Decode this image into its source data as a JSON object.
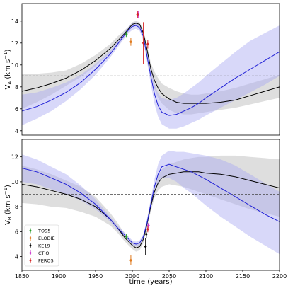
{
  "chart_data": [
    {
      "type": "line",
      "ylabel": "V",
      "ylabel_sub": "A",
      "ylabel_unit": " (km s",
      "ylabel_unit_sup": "−1",
      "ylabel_unit_close": ")",
      "xlim": [
        1850,
        2200
      ],
      "ylim": [
        3.6,
        15.6
      ],
      "yticks": [
        "4",
        "6",
        "8",
        "10",
        "12",
        "14"
      ],
      "ytick_values": [
        4,
        6,
        8,
        10,
        12,
        14
      ],
      "reference_line": 9.0,
      "series": [
        {
          "color": "#000000",
          "x": [
            1850,
            1870,
            1890,
            1910,
            1930,
            1950,
            1970,
            1980,
            1990,
            1995,
            2000,
            2005,
            2010,
            2015,
            2020,
            2025,
            2030,
            2035,
            2040,
            2050,
            2060,
            2070,
            2080,
            2090,
            2100,
            2120,
            2140,
            2160,
            2180,
            2200
          ],
          "values": [
            7.6,
            7.9,
            8.3,
            8.8,
            9.5,
            10.4,
            11.5,
            12.2,
            12.9,
            13.3,
            13.7,
            13.8,
            13.7,
            12.9,
            11.4,
            9.7,
            8.6,
            7.9,
            7.4,
            6.9,
            6.6,
            6.5,
            6.5,
            6.5,
            6.5,
            6.6,
            6.8,
            7.2,
            7.6,
            8.0
          ],
          "band_lower": [
            6.0,
            6.6,
            7.3,
            8.1,
            8.9,
            9.9,
            11.1,
            11.8,
            12.6,
            13.1,
            13.5,
            13.6,
            13.5,
            12.6,
            11.0,
            9.2,
            7.8,
            7.0,
            6.5,
            5.9,
            5.6,
            5.5,
            5.5,
            5.6,
            5.7,
            5.9,
            6.1,
            6.4,
            6.7,
            7.0
          ],
          "band_upper": [
            9.2,
            9.2,
            9.3,
            9.5,
            10.1,
            10.9,
            11.9,
            12.6,
            13.2,
            13.5,
            13.9,
            14.0,
            13.9,
            13.2,
            11.8,
            10.2,
            9.4,
            8.8,
            8.3,
            7.9,
            7.6,
            7.4,
            7.3,
            7.3,
            7.4,
            7.6,
            7.9,
            8.3,
            8.7,
            9.1
          ]
        },
        {
          "color": "#1f1fd6",
          "x": [
            1850,
            1870,
            1890,
            1910,
            1930,
            1950,
            1970,
            1980,
            1990,
            1995,
            2000,
            2005,
            2010,
            2015,
            2020,
            2025,
            2030,
            2035,
            2040,
            2050,
            2060,
            2070,
            2080,
            2090,
            2100,
            2120,
            2140,
            2160,
            2180,
            2200
          ],
          "values": [
            5.8,
            6.2,
            6.8,
            7.5,
            8.4,
            9.6,
            11.0,
            11.9,
            12.8,
            13.2,
            13.5,
            13.6,
            13.4,
            12.6,
            10.8,
            9.0,
            7.4,
            6.3,
            5.7,
            5.4,
            5.5,
            5.8,
            6.1,
            6.5,
            7.0,
            7.9,
            8.8,
            9.6,
            10.4,
            11.2
          ],
          "band_lower": [
            4.5,
            5.1,
            5.8,
            6.7,
            7.8,
            9.1,
            10.7,
            11.6,
            12.5,
            12.9,
            13.2,
            13.3,
            13.1,
            12.2,
            10.3,
            8.3,
            6.5,
            5.3,
            4.6,
            4.2,
            4.2,
            4.4,
            4.7,
            5.0,
            5.4,
            6.1,
            6.8,
            7.5,
            8.2,
            9.0
          ],
          "band_upper": [
            7.3,
            7.5,
            7.9,
            8.4,
            9.1,
            10.1,
            11.3,
            12.2,
            13.1,
            13.5,
            13.8,
            13.9,
            13.7,
            13.0,
            11.4,
            9.8,
            8.3,
            7.4,
            7.0,
            6.8,
            7.0,
            7.4,
            7.9,
            8.4,
            9.0,
            10.1,
            11.2,
            12.2,
            12.9,
            13.6
          ]
        }
      ],
      "observations": [
        {
          "instrument": "TO95",
          "color": "#2a9d2a",
          "x": 1992,
          "y": 12.8,
          "err": 0.25
        },
        {
          "instrument": "ELODIE",
          "color": "#e07b1f",
          "x": 1998,
          "y": 12.1,
          "err": 0.35
        },
        {
          "instrument": "CTIO",
          "color": "#cc33cc",
          "x": 2008,
          "y": 14.6,
          "err": 0.3
        },
        {
          "instrument": "FEROS",
          "color": "#d62728",
          "x": 2007,
          "y": 14.6,
          "err": 0.35
        },
        {
          "instrument": "FEROS",
          "color": "#d62728",
          "x": 2015,
          "y": 12.0,
          "err": 1.9
        },
        {
          "instrument": "FEROS",
          "color": "#d62728",
          "x": 2021,
          "y": 11.9,
          "err": 0.4
        }
      ]
    },
    {
      "type": "line",
      "ylabel": "V",
      "ylabel_sub": "B",
      "ylabel_unit": " (km s",
      "ylabel_unit_sup": "−1",
      "ylabel_unit_close": ")",
      "xlabel": "time (years)",
      "xlim": [
        1850,
        2200
      ],
      "ylim": [
        2.9,
        13.4
      ],
      "yticks": [
        "4",
        "6",
        "8",
        "10",
        "12"
      ],
      "ytick_values": [
        4,
        6,
        8,
        10,
        12
      ],
      "xticks": [
        "1850",
        "1900",
        "1950",
        "2000",
        "2050",
        "2100",
        "2150",
        "2200"
      ],
      "xtick_values": [
        1850,
        1900,
        1950,
        2000,
        2050,
        2100,
        2150,
        2200
      ],
      "reference_line": 9.0,
      "series": [
        {
          "color": "#000000",
          "x": [
            1850,
            1870,
            1890,
            1910,
            1930,
            1950,
            1970,
            1980,
            1990,
            2000,
            2005,
            2010,
            2015,
            2020,
            2025,
            2030,
            2035,
            2040,
            2050,
            2060,
            2070,
            2080,
            2090,
            2100,
            2120,
            2140,
            2160,
            2180,
            2200
          ],
          "values": [
            9.8,
            9.6,
            9.3,
            9.0,
            8.6,
            8.0,
            7.0,
            6.3,
            5.5,
            4.9,
            4.7,
            4.8,
            5.4,
            6.6,
            8.0,
            9.2,
            9.9,
            10.3,
            10.6,
            10.7,
            10.8,
            10.8,
            10.8,
            10.7,
            10.6,
            10.4,
            10.1,
            9.8,
            9.5
          ],
          "band_lower": [
            8.3,
            8.2,
            8.0,
            7.9,
            7.6,
            7.2,
            6.5,
            5.9,
            5.2,
            4.6,
            4.4,
            4.5,
            5.1,
            6.3,
            7.6,
            8.7,
            9.3,
            9.6,
            9.8,
            9.7,
            9.6,
            9.4,
            9.2,
            9.0,
            8.6,
            8.2,
            7.8,
            7.5,
            7.2
          ],
          "band_upper": [
            11.3,
            11.0,
            10.6,
            10.1,
            9.6,
            8.8,
            7.5,
            6.7,
            5.8,
            5.2,
            5.0,
            5.1,
            5.7,
            6.9,
            8.4,
            9.7,
            10.5,
            11.0,
            11.4,
            11.6,
            11.8,
            11.9,
            12.0,
            12.0,
            12.1,
            12.1,
            12.0,
            11.9,
            11.8
          ]
        },
        {
          "color": "#1f1fd6",
          "x": [
            1850,
            1870,
            1890,
            1910,
            1930,
            1950,
            1970,
            1980,
            1990,
            2000,
            2005,
            2010,
            2015,
            2020,
            2025,
            2030,
            2035,
            2040,
            2050,
            2060,
            2070,
            2080,
            2090,
            2100,
            2120,
            2140,
            2160,
            2180,
            2200
          ],
          "values": [
            11.1,
            10.8,
            10.3,
            9.8,
            9.1,
            8.2,
            7.0,
            6.3,
            5.7,
            5.1,
            5.0,
            5.1,
            5.6,
            6.7,
            8.2,
            9.6,
            10.6,
            11.2,
            11.4,
            11.2,
            11.0,
            10.8,
            10.5,
            10.2,
            9.5,
            8.8,
            8.1,
            7.4,
            6.8
          ],
          "band_lower": [
            10.0,
            9.8,
            9.4,
            9.0,
            8.5,
            7.8,
            6.8,
            6.1,
            5.5,
            4.9,
            4.8,
            4.9,
            5.4,
            6.4,
            7.8,
            9.0,
            9.8,
            10.3,
            10.3,
            10.0,
            9.5,
            9.1,
            8.6,
            8.1,
            7.2,
            6.4,
            5.6,
            4.9,
            4.2
          ],
          "band_upper": [
            12.2,
            11.8,
            11.2,
            10.6,
            9.7,
            8.6,
            7.2,
            6.5,
            5.9,
            5.3,
            5.2,
            5.3,
            5.8,
            7.0,
            8.6,
            10.2,
            11.4,
            12.1,
            12.5,
            12.4,
            12.4,
            12.3,
            12.2,
            12.1,
            11.8,
            11.3,
            10.6,
            9.9,
            9.2
          ]
        }
      ],
      "observations": [
        {
          "instrument": "TO95",
          "color": "#2a9d2a",
          "x": 1992,
          "y": 5.6,
          "err": 0.2
        },
        {
          "instrument": "ELODIE",
          "color": "#e07b1f",
          "x": 1998,
          "y": 3.7,
          "err": 0.4
        },
        {
          "instrument": "KE19",
          "color": "#000000",
          "x": 2018,
          "y": 4.8,
          "err": 0.7
        },
        {
          "instrument": "KE19",
          "color": "#000000",
          "x": 2019,
          "y": 5.8,
          "err": 0.3
        },
        {
          "instrument": "CTIO",
          "color": "#cc33cc",
          "x": 2022,
          "y": 6.5,
          "err": 0.2
        },
        {
          "instrument": "FEROS",
          "color": "#d62728",
          "x": 2021,
          "y": 6.2,
          "err": 0.25
        }
      ],
      "legend": {
        "placement": "lower-left",
        "entries": [
          {
            "label": "TO95",
            "color": "#2a9d2a"
          },
          {
            "label": "ELODIE",
            "color": "#e07b1f"
          },
          {
            "label": "KE19",
            "color": "#000000"
          },
          {
            "label": "CTIO",
            "color": "#cc33cc"
          },
          {
            "label": "FEROS",
            "color": "#d62728"
          }
        ]
      }
    }
  ]
}
